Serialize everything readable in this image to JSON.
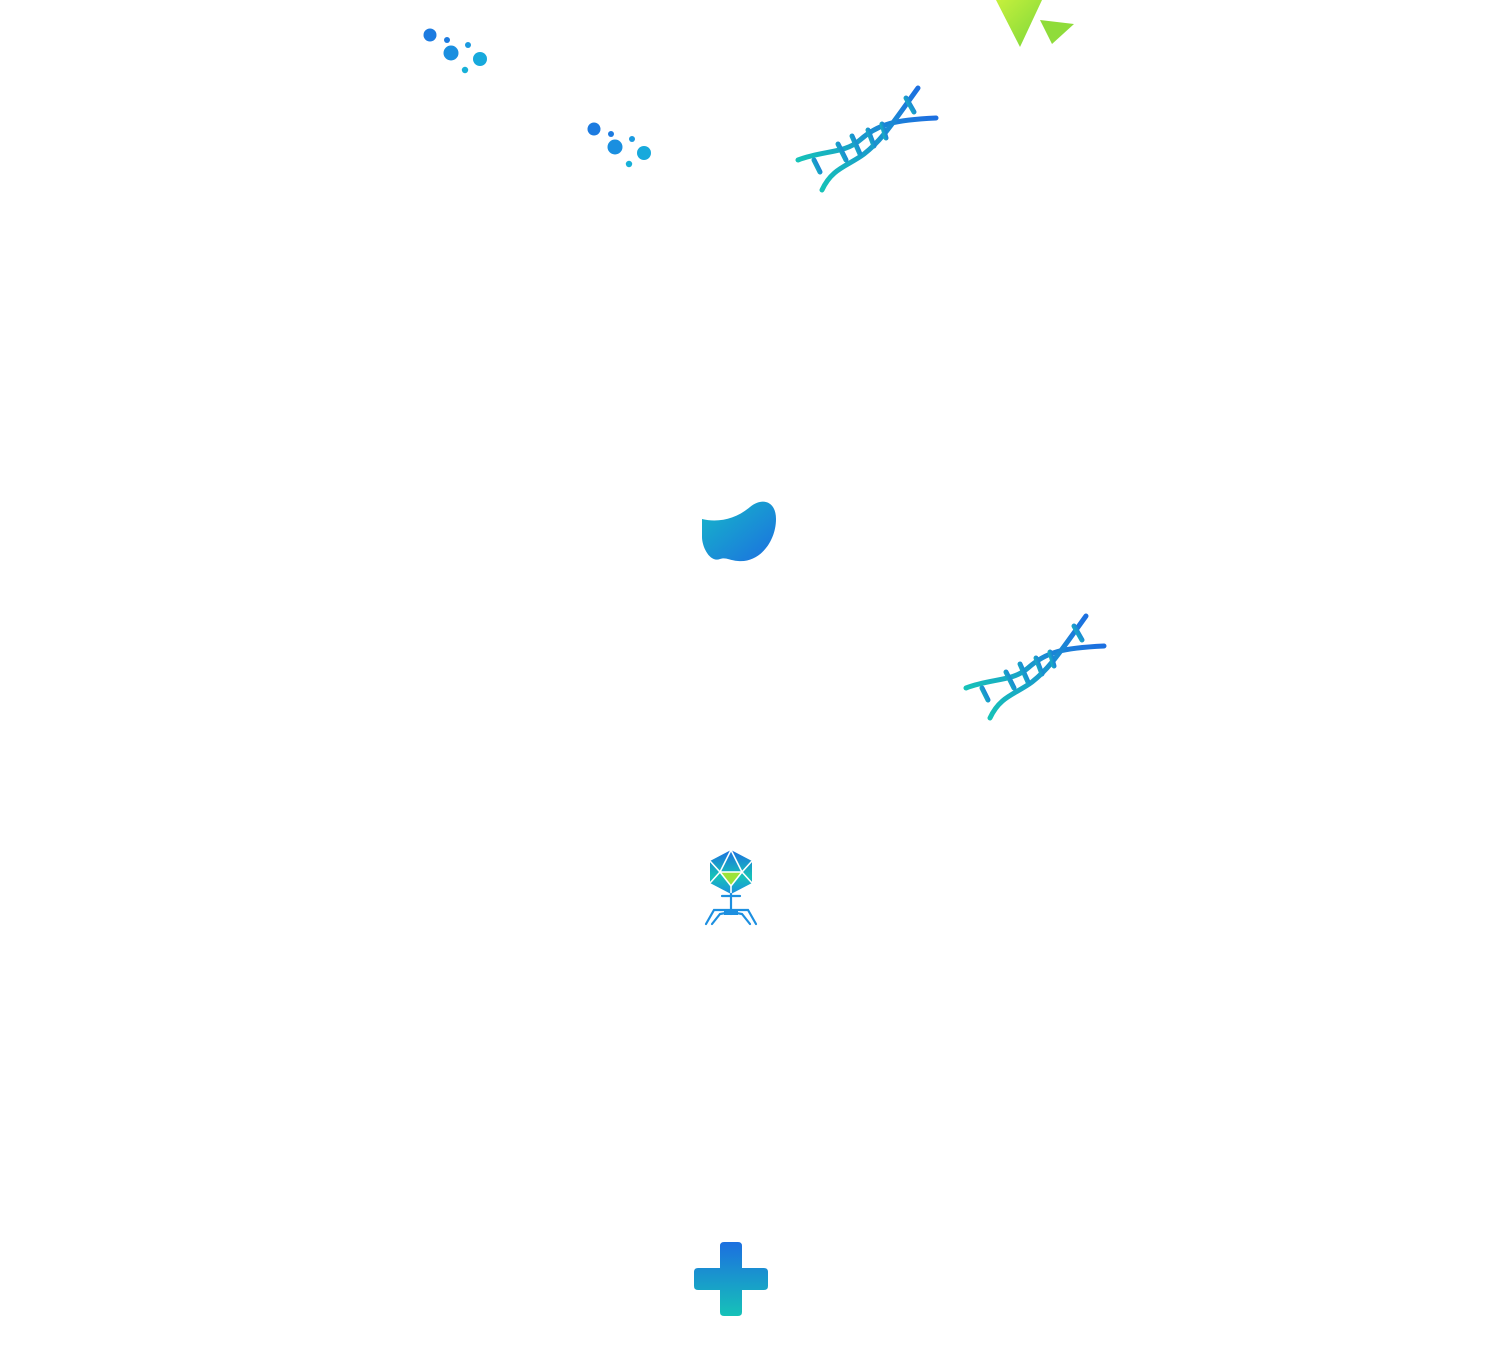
{
  "scene": {
    "background_color": "#ffffff",
    "gradient": {
      "blue": "#1c6fe0",
      "teal": "#16c2b8",
      "green": "#9be33a",
      "lime": "#c6f03c"
    },
    "icons": [
      {
        "id": "bubbles-1",
        "icon": "molecule-bubbles-icon"
      },
      {
        "id": "bubbles-2",
        "icon": "molecule-bubbles-icon"
      },
      {
        "id": "dna-1",
        "icon": "dna-helix-icon"
      },
      {
        "id": "triangles",
        "icon": "triangles-icon"
      },
      {
        "id": "blob",
        "icon": "cell-blob-icon"
      },
      {
        "id": "dna-2",
        "icon": "dna-helix-icon"
      },
      {
        "id": "virus",
        "icon": "bacteriophage-icon"
      },
      {
        "id": "cross",
        "icon": "medical-cross-icon"
      }
    ]
  }
}
